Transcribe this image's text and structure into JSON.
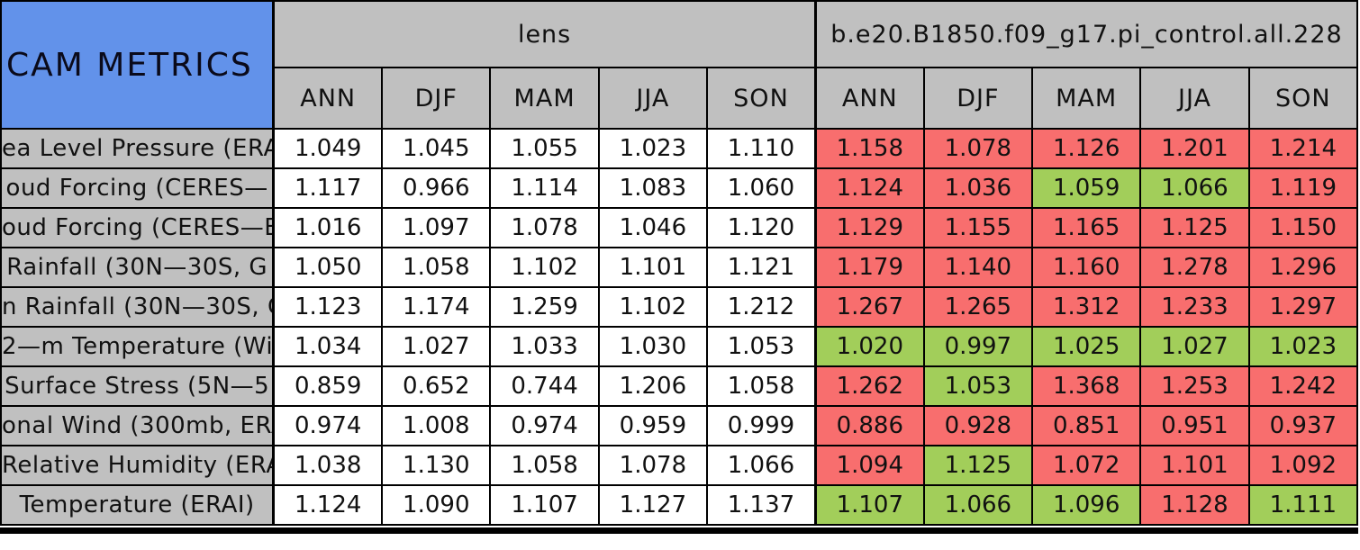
{
  "colors": {
    "header_blue": "#6292ea",
    "header_gray": "#c0c0c0",
    "cell_red": "#f86e6e",
    "cell_green": "#a2ce5a",
    "border_black": "#000000"
  },
  "chart_data": {
    "type": "table",
    "title": "CAM METRICS",
    "column_groups": [
      "lens",
      "b.e20.B1850.f09_g17.pi_control.all.228"
    ],
    "season_columns": [
      "ANN",
      "DJF",
      "MAM",
      "JJA",
      "SON"
    ],
    "cell_color_legend": [
      "red",
      "green",
      "white"
    ],
    "rows": [
      {
        "label": "ea Level Pressure (ERA",
        "lens": [
          "1.049",
          "1.045",
          "1.055",
          "1.023",
          "1.110"
        ],
        "control": [
          "1.158",
          "1.078",
          "1.126",
          "1.201",
          "1.214"
        ],
        "control_colors": [
          "red",
          "red",
          "red",
          "red",
          "red"
        ]
      },
      {
        "label": "oud Forcing (CERES—",
        "lens": [
          "1.117",
          "0.966",
          "1.114",
          "1.083",
          "1.060"
        ],
        "control": [
          "1.124",
          "1.036",
          "1.059",
          "1.066",
          "1.119"
        ],
        "control_colors": [
          "red",
          "red",
          "green",
          "green",
          "red"
        ]
      },
      {
        "label": "oud Forcing (CERES—E",
        "lens": [
          "1.016",
          "1.097",
          "1.078",
          "1.046",
          "1.120"
        ],
        "control": [
          "1.129",
          "1.155",
          "1.165",
          "1.125",
          "1.150"
        ],
        "control_colors": [
          "red",
          "red",
          "red",
          "red",
          "red"
        ]
      },
      {
        "label": "Rainfall (30N—30S, G",
        "lens": [
          "1.050",
          "1.058",
          "1.102",
          "1.101",
          "1.121"
        ],
        "control": [
          "1.179",
          "1.140",
          "1.160",
          "1.278",
          "1.296"
        ],
        "control_colors": [
          "red",
          "red",
          "red",
          "red",
          "red"
        ]
      },
      {
        "label": "n Rainfall (30N—30S, G",
        "lens": [
          "1.123",
          "1.174",
          "1.259",
          "1.102",
          "1.212"
        ],
        "control": [
          "1.267",
          "1.265",
          "1.312",
          "1.233",
          "1.297"
        ],
        "control_colors": [
          "red",
          "red",
          "red",
          "red",
          "red"
        ]
      },
      {
        "label": "2—m Temperature (Wil",
        "lens": [
          "1.034",
          "1.027",
          "1.033",
          "1.030",
          "1.053"
        ],
        "control": [
          "1.020",
          "0.997",
          "1.025",
          "1.027",
          "1.023"
        ],
        "control_colors": [
          "green",
          "green",
          "green",
          "green",
          "green"
        ]
      },
      {
        "label": "Surface Stress (5N—5",
        "lens": [
          "0.859",
          "0.652",
          "0.744",
          "1.206",
          "1.058"
        ],
        "control": [
          "1.262",
          "1.053",
          "1.368",
          "1.253",
          "1.242"
        ],
        "control_colors": [
          "red",
          "green",
          "red",
          "red",
          "red"
        ]
      },
      {
        "label": "onal Wind (300mb, ERA",
        "lens": [
          "0.974",
          "1.008",
          "0.974",
          "0.959",
          "0.999"
        ],
        "control": [
          "0.886",
          "0.928",
          "0.851",
          "0.951",
          "0.937"
        ],
        "control_colors": [
          "red",
          "red",
          "red",
          "red",
          "red"
        ]
      },
      {
        "label": "Relative Humidity (ERAI",
        "lens": [
          "1.038",
          "1.130",
          "1.058",
          "1.078",
          "1.066"
        ],
        "control": [
          "1.094",
          "1.125",
          "1.072",
          "1.101",
          "1.092"
        ],
        "control_colors": [
          "red",
          "green",
          "red",
          "red",
          "red"
        ]
      },
      {
        "label": "Temperature (ERAI)",
        "lens": [
          "1.124",
          "1.090",
          "1.107",
          "1.127",
          "1.137"
        ],
        "control": [
          "1.107",
          "1.066",
          "1.096",
          "1.128",
          "1.111"
        ],
        "control_colors": [
          "green",
          "green",
          "green",
          "red",
          "green"
        ]
      }
    ]
  }
}
